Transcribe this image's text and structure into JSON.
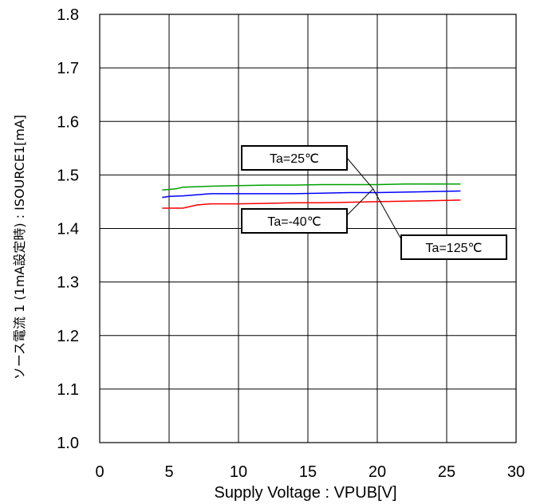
{
  "chart_data": {
    "type": "line",
    "xlabel": "Supply Voltage : VPUB[V]",
    "ylabel": "ソース電流 1 (1mA設定時) : ISOURCE1[mA]",
    "xlim": [
      0,
      30
    ],
    "ylim": [
      1.0,
      1.8
    ],
    "xticks": [
      "0",
      "5",
      "10",
      "15",
      "20",
      "25",
      "30"
    ],
    "yticks": [
      "1.0",
      "1.1",
      "1.2",
      "1.3",
      "1.4",
      "1.5",
      "1.6",
      "1.7",
      "1.8"
    ],
    "grid": true,
    "series": [
      {
        "name": "Ta=-40℃",
        "color": "#00a000",
        "x": [
          4.5,
          5,
          5.5,
          6,
          7,
          8,
          10,
          12,
          14,
          16,
          18,
          20,
          22,
          24,
          26
        ],
        "y": [
          1.472,
          1.473,
          1.474,
          1.477,
          1.478,
          1.479,
          1.48,
          1.481,
          1.481,
          1.482,
          1.482,
          1.482,
          1.483,
          1.483,
          1.483
        ]
      },
      {
        "name": "Ta=25℃",
        "color": "#0000ff",
        "x": [
          4.5,
          5,
          6,
          7,
          8,
          10,
          12,
          14,
          16,
          18,
          20,
          22,
          24,
          26
        ],
        "y": [
          1.458,
          1.46,
          1.461,
          1.463,
          1.465,
          1.465,
          1.465,
          1.465,
          1.466,
          1.467,
          1.467,
          1.468,
          1.469,
          1.47
        ]
      },
      {
        "name": "Ta=125℃",
        "color": "#ff0000",
        "x": [
          4.5,
          5,
          6,
          7,
          8,
          10,
          12,
          14,
          16,
          18,
          20,
          22,
          24,
          26
        ],
        "y": [
          1.438,
          1.438,
          1.438,
          1.444,
          1.446,
          1.446,
          1.447,
          1.448,
          1.448,
          1.449,
          1.45,
          1.451,
          1.452,
          1.453
        ]
      }
    ],
    "annotations": [
      {
        "text": "Ta=25℃",
        "target_x": 19.7,
        "target_y": 1.474
      },
      {
        "text": "Ta=-40℃",
        "target_x": 19.7,
        "target_y": 1.474
      },
      {
        "text": "Ta=125℃",
        "target_x": 19.7,
        "target_y": 1.474
      }
    ]
  }
}
